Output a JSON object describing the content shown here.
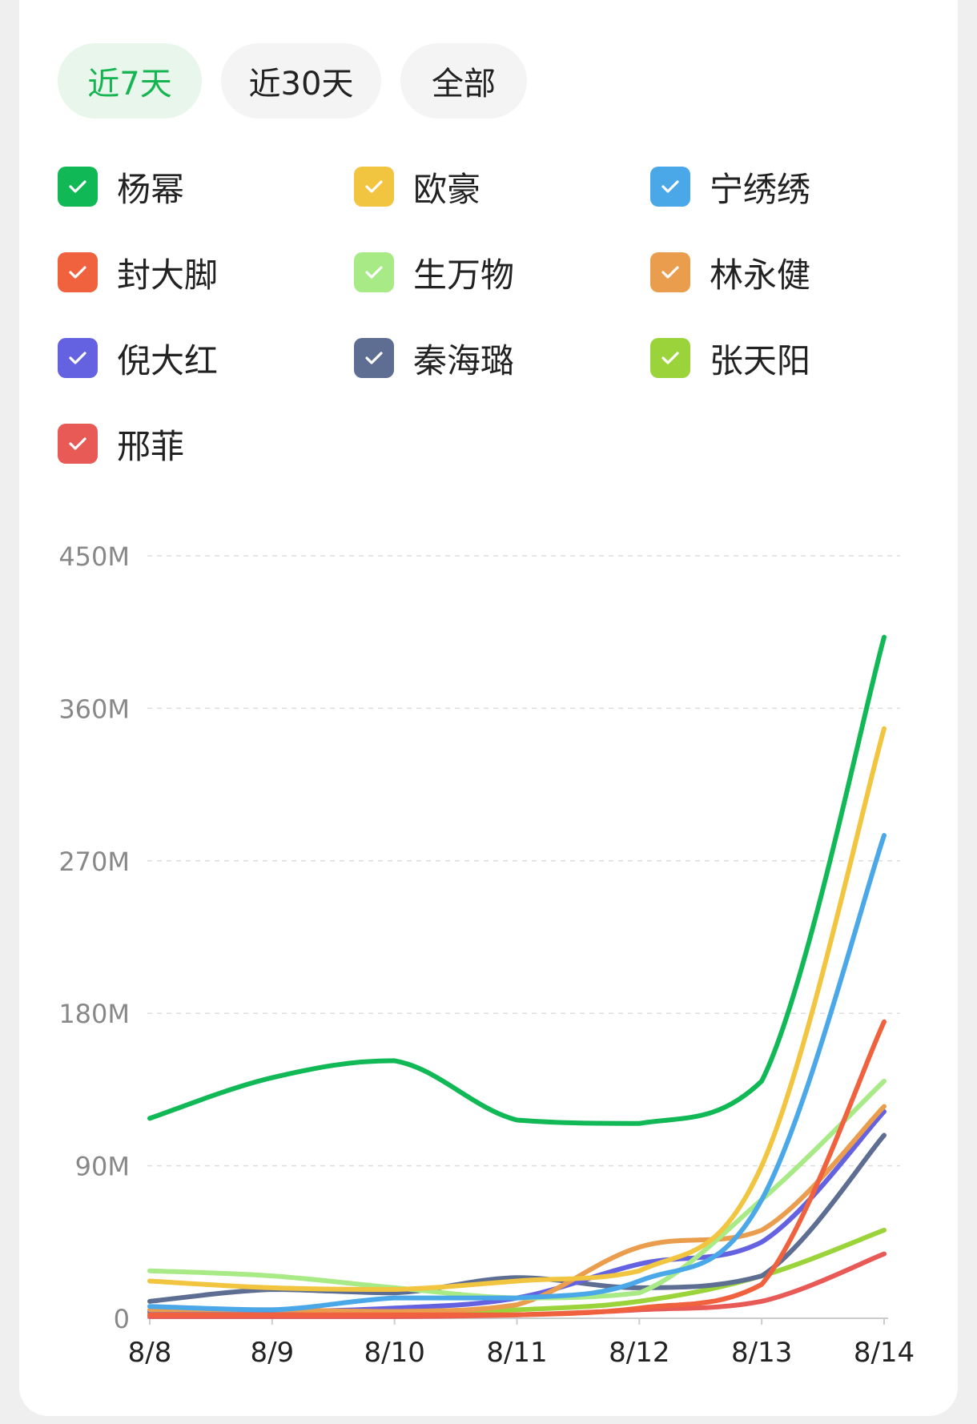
{
  "tabs": [
    {
      "label": "近7天",
      "active": true
    },
    {
      "label": "近30天",
      "active": false
    },
    {
      "label": "全部",
      "active": false
    }
  ],
  "colors": {
    "accent": "#16b552",
    "grid": "#dddddd",
    "axis_text": "#888888",
    "tick_text": "#222222"
  },
  "chart_data": {
    "type": "line",
    "categories": [
      "8/8",
      "8/9",
      "8/10",
      "8/11",
      "8/12",
      "8/13",
      "8/14"
    ],
    "yticks": [
      "0",
      "90M",
      "180M",
      "270M",
      "360M",
      "450M"
    ],
    "ylim": [
      0,
      450
    ],
    "grid": true,
    "legend_position": "top",
    "series": [
      {
        "name": "杨幂",
        "color": "#10b856",
        "values": [
          118,
          142,
          152,
          117,
          115,
          140,
          402
        ]
      },
      {
        "name": "欧豪",
        "color": "#f2c541",
        "values": [
          22,
          18,
          17,
          22,
          28,
          90,
          348
        ]
      },
      {
        "name": "宁绣绣",
        "color": "#4aa8e8",
        "values": [
          7,
          5,
          12,
          12,
          22,
          70,
          285
        ]
      },
      {
        "name": "封大脚",
        "color": "#f0623e",
        "values": [
          2,
          2,
          2,
          2,
          6,
          20,
          175
        ]
      },
      {
        "name": "生万物",
        "color": "#a8ea86",
        "values": [
          28,
          25,
          18,
          12,
          15,
          70,
          140
        ]
      },
      {
        "name": "林永健",
        "color": "#eb9d4e",
        "values": [
          5,
          5,
          4,
          8,
          42,
          52,
          125
        ]
      },
      {
        "name": "倪大红",
        "color": "#6462e0",
        "values": [
          4,
          4,
          6,
          12,
          32,
          45,
          122
        ]
      },
      {
        "name": "秦海璐",
        "color": "#5d6e92",
        "values": [
          10,
          17,
          15,
          24,
          18,
          25,
          108
        ]
      },
      {
        "name": "张天阳",
        "color": "#9bd43a",
        "values": [
          3,
          3,
          3,
          5,
          10,
          25,
          52
        ]
      },
      {
        "name": "邢菲",
        "color": "#e85a55",
        "values": [
          1,
          1,
          1,
          2,
          5,
          10,
          38
        ]
      }
    ]
  }
}
